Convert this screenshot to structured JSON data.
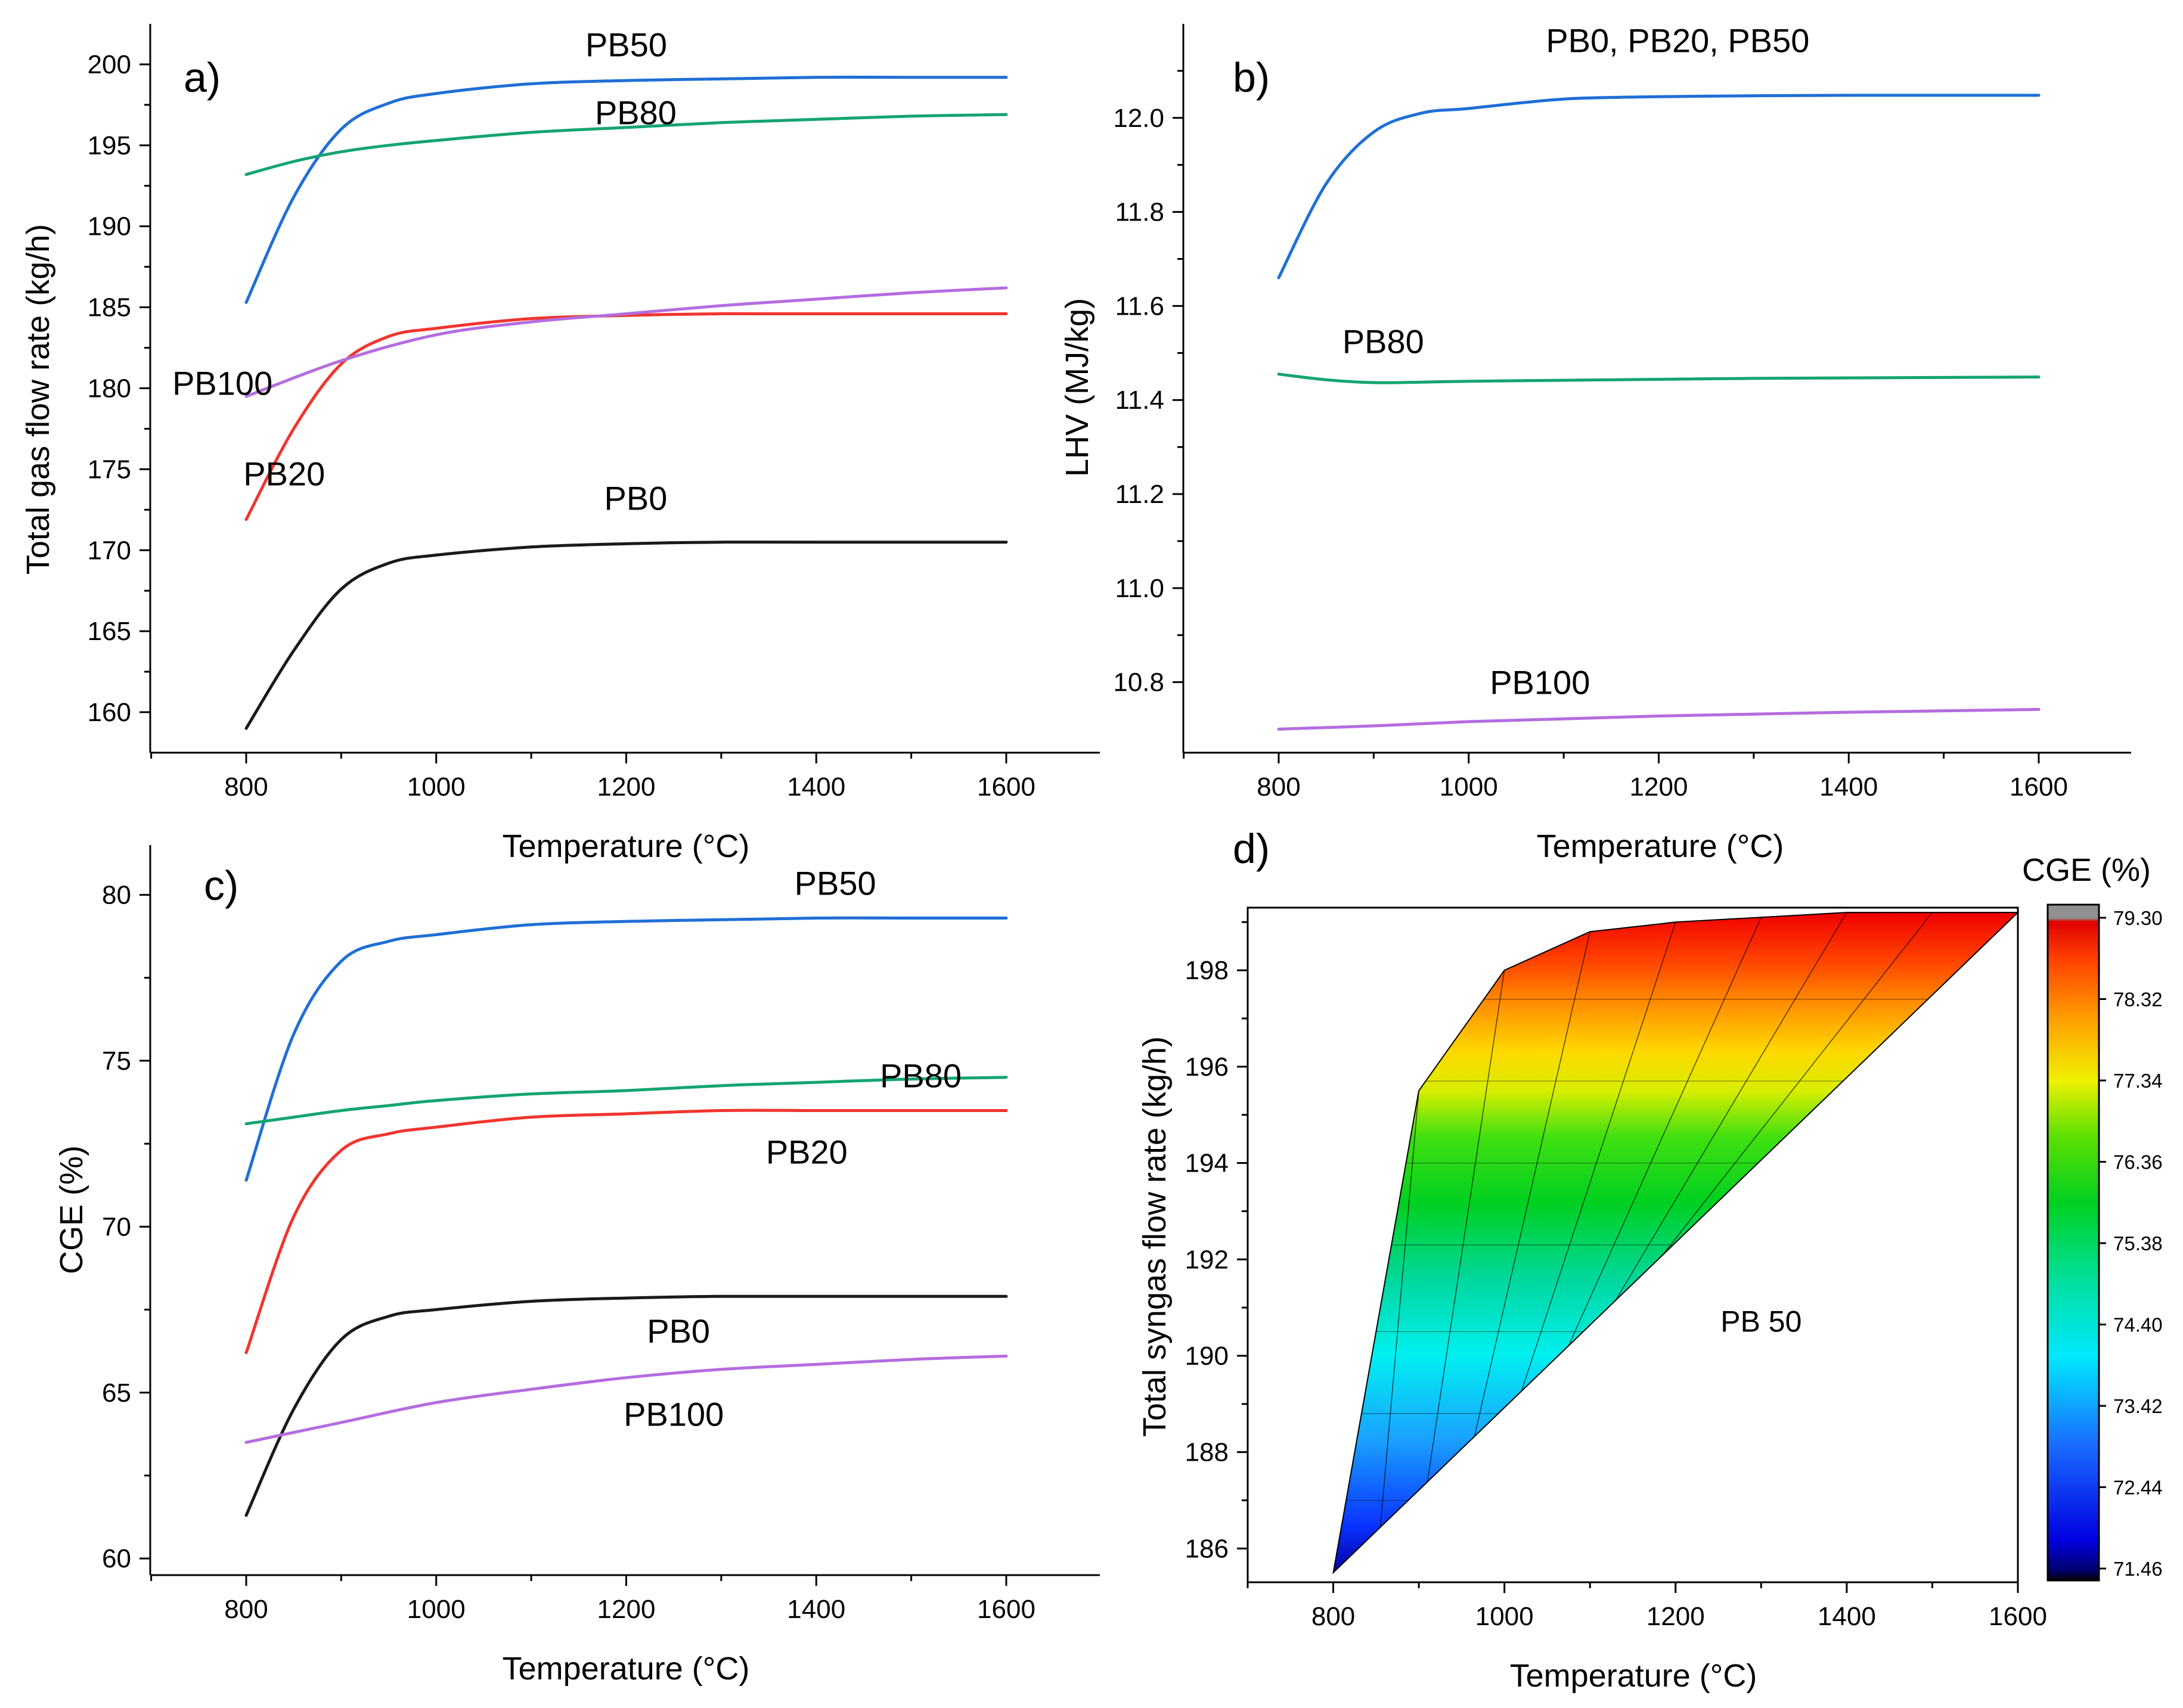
{
  "colors": {
    "PB0": "#1a1a1a",
    "PB20": "#f0352e",
    "PB50": "#1f6fd6",
    "PB80": "#14a571",
    "PB100": "#b46de0"
  },
  "chart_data": [
    {
      "id": "a",
      "type": "line",
      "panel_label": "a)",
      "title": "",
      "xlabel": "Temperature (°C)",
      "ylabel": "Total gas flow rate (kg/h)",
      "xlim": [
        700,
        1700
      ],
      "ylim": [
        157.5,
        202.5
      ],
      "xticks": [
        800,
        1000,
        1200,
        1400,
        1600
      ],
      "yticks": [
        160,
        165,
        170,
        175,
        180,
        185,
        190,
        195,
        200
      ],
      "ytick_labels": [
        "160",
        "165",
        "170",
        "175",
        "180",
        "185",
        "190",
        "195",
        "200"
      ],
      "grid": false,
      "series": [
        {
          "name": "PB0",
          "label": "PB0",
          "color_key": "PB0",
          "label_at": [
            1210,
            172.5
          ],
          "x": [
            800,
            850,
            900,
            950,
            1000,
            1100,
            1200,
            1300,
            1400,
            1500,
            1600
          ],
          "y": [
            159.0,
            163.8,
            167.6,
            169.2,
            169.7,
            170.2,
            170.4,
            170.5,
            170.5,
            170.5,
            170.5
          ]
        },
        {
          "name": "PB20",
          "label": "PB20",
          "color_key": "PB20",
          "label_at": [
            840,
            174.0
          ],
          "x": [
            800,
            850,
            900,
            950,
            1000,
            1100,
            1200,
            1300,
            1400,
            1500,
            1600
          ],
          "y": [
            171.9,
            177.5,
            181.5,
            183.2,
            183.7,
            184.3,
            184.5,
            184.6,
            184.6,
            184.6,
            184.6
          ]
        },
        {
          "name": "PB50",
          "label": "PB50",
          "color_key": "PB50",
          "label_at": [
            1200,
            200.5
          ],
          "x": [
            800,
            850,
            900,
            950,
            1000,
            1100,
            1200,
            1300,
            1400,
            1500,
            1600
          ],
          "y": [
            185.3,
            191.8,
            196.0,
            197.6,
            198.2,
            198.8,
            199.0,
            199.1,
            199.2,
            199.2,
            199.2
          ]
        },
        {
          "name": "PB80",
          "label": "PB80",
          "color_key": "PB80",
          "label_at": [
            1210,
            196.3
          ],
          "x": [
            800,
            850,
            900,
            950,
            1000,
            1100,
            1200,
            1300,
            1400,
            1500,
            1600
          ],
          "y": [
            193.2,
            194.0,
            194.6,
            195.0,
            195.3,
            195.8,
            196.1,
            196.4,
            196.6,
            196.8,
            196.9
          ]
        },
        {
          "name": "PB100",
          "label": "PB100",
          "color_key": "PB100",
          "label_at": [
            775,
            179.6
          ],
          "x": [
            800,
            900,
            1000,
            1100,
            1200,
            1300,
            1400,
            1500,
            1600
          ],
          "y": [
            179.5,
            181.7,
            183.3,
            184.1,
            184.6,
            185.1,
            185.5,
            185.9,
            186.2
          ]
        }
      ]
    },
    {
      "id": "b",
      "type": "line",
      "panel_label": "b)",
      "title": "",
      "xlabel": "Temperature (°C)",
      "ylabel": "LHV (MJ/kg)",
      "xlim": [
        700,
        1700
      ],
      "ylim": [
        10.65,
        12.2
      ],
      "xticks": [
        800,
        1000,
        1200,
        1400,
        1600
      ],
      "yticks": [
        10.8,
        11.0,
        11.2,
        11.4,
        11.6,
        11.8,
        12.0
      ],
      "ytick_labels": [
        "10.8",
        "11.0",
        "11.2",
        "11.4",
        "11.6",
        "11.8",
        "12.0"
      ],
      "grid": false,
      "series": [
        {
          "name": "PB0, PB20, PB50",
          "label": "PB0, PB20, PB50",
          "color_key": "PB50",
          "label_at": [
            1220,
            12.14
          ],
          "x": [
            800,
            850,
            900,
            950,
            1000,
            1100,
            1200,
            1300,
            1400,
            1500,
            1600
          ],
          "y": [
            11.66,
            11.86,
            11.97,
            12.01,
            12.02,
            12.04,
            12.045,
            12.047,
            12.048,
            12.048,
            12.048
          ]
        },
        {
          "name": "PB80",
          "label": "PB80",
          "color_key": "PB80",
          "label_at": [
            910,
            11.5
          ],
          "x": [
            800,
            850,
            900,
            950,
            1000,
            1100,
            1200,
            1300,
            1400,
            1500,
            1600
          ],
          "y": [
            11.455,
            11.443,
            11.437,
            11.438,
            11.44,
            11.442,
            11.444,
            11.446,
            11.447,
            11.448,
            11.449
          ]
        },
        {
          "name": "PB100",
          "label": "PB100",
          "color_key": "PB100",
          "label_at": [
            1075,
            10.775
          ],
          "x": [
            800,
            900,
            1000,
            1100,
            1200,
            1300,
            1400,
            1500,
            1600
          ],
          "y": [
            10.7,
            10.707,
            10.716,
            10.722,
            10.728,
            10.732,
            10.736,
            10.739,
            10.742
          ]
        }
      ]
    },
    {
      "id": "c",
      "type": "line",
      "panel_label": "c)",
      "title": "",
      "xlabel": "Temperature (°C)",
      "ylabel": "CGE (%)",
      "xlim": [
        700,
        1700
      ],
      "ylim": [
        59.5,
        81.5
      ],
      "xticks": [
        800,
        1000,
        1200,
        1400,
        1600
      ],
      "yticks": [
        60,
        65,
        70,
        75,
        80
      ],
      "ytick_labels": [
        "60",
        "65",
        "70",
        "75",
        "80"
      ],
      "grid": false,
      "series": [
        {
          "name": "PB0",
          "label": "PB0",
          "color_key": "PB0",
          "label_at": [
            1255,
            66.5
          ],
          "x": [
            800,
            850,
            900,
            950,
            1000,
            1100,
            1200,
            1300,
            1400,
            1500,
            1600
          ],
          "y": [
            61.3,
            64.5,
            66.6,
            67.3,
            67.5,
            67.75,
            67.85,
            67.9,
            67.9,
            67.9,
            67.9
          ]
        },
        {
          "name": "PB20",
          "label": "PB20",
          "color_key": "PB20",
          "label_at": [
            1390,
            71.9
          ],
          "x": [
            800,
            850,
            900,
            950,
            1000,
            1100,
            1200,
            1300,
            1400,
            1500,
            1600
          ],
          "y": [
            66.2,
            70.3,
            72.3,
            72.8,
            73.0,
            73.3,
            73.4,
            73.5,
            73.5,
            73.5,
            73.5
          ]
        },
        {
          "name": "PB50",
          "label": "PB50",
          "color_key": "PB50",
          "label_at": [
            1420,
            80.0
          ],
          "x": [
            800,
            850,
            900,
            950,
            1000,
            1100,
            1200,
            1300,
            1400,
            1500,
            1600
          ],
          "y": [
            71.4,
            75.8,
            78.0,
            78.6,
            78.8,
            79.1,
            79.2,
            79.25,
            79.3,
            79.3,
            79.3
          ]
        },
        {
          "name": "PB80",
          "label": "PB80",
          "color_key": "PB80",
          "label_at": [
            1510,
            74.2
          ],
          "x": [
            800,
            850,
            900,
            950,
            1000,
            1100,
            1200,
            1300,
            1400,
            1500,
            1600
          ],
          "y": [
            73.1,
            73.3,
            73.5,
            73.65,
            73.8,
            74.0,
            74.1,
            74.25,
            74.35,
            74.45,
            74.5
          ]
        },
        {
          "name": "PB100",
          "label": "PB100",
          "color_key": "PB100",
          "label_at": [
            1250,
            64.0
          ],
          "x": [
            800,
            900,
            1000,
            1100,
            1200,
            1300,
            1400,
            1500,
            1600
          ],
          "y": [
            63.5,
            64.1,
            64.7,
            65.1,
            65.45,
            65.7,
            65.85,
            66.0,
            66.1
          ]
        }
      ]
    },
    {
      "id": "d",
      "type": "heatmap",
      "panel_label": "d)",
      "title": "",
      "xlabel": "Temperature (°C)",
      "ylabel": "Total syngas flow rate (kg/h)",
      "xlim": [
        700,
        1600
      ],
      "ylim": [
        185.3,
        199.3
      ],
      "xticks": [
        800,
        1000,
        1200,
        1400,
        1600
      ],
      "yticks": [
        186,
        188,
        190,
        192,
        194,
        196,
        198
      ],
      "ytick_labels": [
        "186",
        "188",
        "190",
        "192",
        "194",
        "196",
        "198"
      ],
      "grid": false,
      "annotation": "PB 50",
      "annotation_at": [
        1300,
        190.5
      ],
      "upper_boundary": {
        "x": [
          800,
          900,
          1000,
          1100,
          1200,
          1300,
          1400,
          1500,
          1600
        ],
        "y": [
          185.5,
          195.5,
          198.0,
          198.8,
          199.0,
          199.1,
          199.2,
          199.2,
          199.2
        ]
      },
      "lower_boundary": {
        "x": [
          800,
          1600
        ],
        "y": [
          185.5,
          199.2
        ]
      },
      "colorbar": {
        "title": "CGE (%)",
        "min": 71.46,
        "max": 79.3,
        "tick_labels": [
          "71.46",
          "72.44",
          "73.42",
          "74.40",
          "75.38",
          "76.36",
          "77.34",
          "78.32",
          "79.30"
        ]
      }
    }
  ]
}
